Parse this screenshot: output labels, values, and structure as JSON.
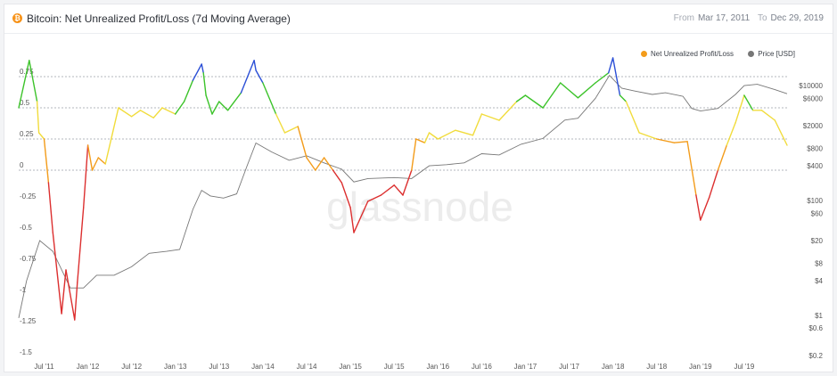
{
  "header": {
    "title": "Bitcoin: Net Unrealized Profit/Loss (7d Moving Average)",
    "from_label": "From",
    "from_value": "Mar 17, 2011",
    "to_label": "To",
    "to_value": "Dec 29, 2019"
  },
  "watermark": "glassnode",
  "colors": {
    "red": "#dc2f2f",
    "orange": "#f39c1b",
    "yellow": "#f1dc3c",
    "green": "#3cc32a",
    "blue": "#2b4fd6",
    "price": "#777777"
  },
  "chart_data": {
    "type": "line",
    "x_tick_labels": [
      "Jul '11",
      "Jan '12",
      "Jul '12",
      "Jan '13",
      "Jul '13",
      "Jan '14",
      "Jul '14",
      "Jan '15",
      "Jul '15",
      "Jan '16",
      "Jul '16",
      "Jan '17",
      "Jul '17",
      "Jan '18",
      "Jul '18",
      "Jan '19",
      "Jul '19"
    ],
    "left_axis": {
      "ylim": [
        -1.5,
        0.95
      ],
      "tick_labels": [
        "0.75",
        "0.5",
        "0.25",
        "0",
        "-0.25",
        "-0.5",
        "-0.75",
        "-1",
        "-1.25",
        "-1.5"
      ]
    },
    "right_axis": {
      "scale": "log",
      "tick_labels": [
        "$10000",
        "$6000",
        "$2000",
        "$800",
        "$400",
        "$100",
        "$60",
        "$20",
        "$8",
        "$4",
        "$1",
        "$0.6",
        "$0.2"
      ]
    },
    "legend": [
      {
        "name": "Net Unrealized Profit/Loss",
        "color": "#f39c1b"
      },
      {
        "name": "Price [USD]",
        "color": "#777777"
      }
    ],
    "series": [
      {
        "name": "Net Unrealized Profit/Loss",
        "x": [
          2011.21,
          2011.33,
          2011.42,
          2011.44,
          2011.5,
          2011.55,
          2011.6,
          2011.7,
          2011.75,
          2011.85,
          2011.88,
          2011.95,
          2012.0,
          2012.05,
          2012.12,
          2012.2,
          2012.35,
          2012.5,
          2012.6,
          2012.75,
          2012.85,
          2013.0,
          2013.1,
          2013.2,
          2013.3,
          2013.32,
          2013.35,
          2013.42,
          2013.5,
          2013.6,
          2013.75,
          2013.9,
          2013.92,
          2014.0,
          2014.15,
          2014.25,
          2014.4,
          2014.5,
          2014.6,
          2014.7,
          2014.8,
          2014.9,
          2015.0,
          2015.04,
          2015.2,
          2015.35,
          2015.5,
          2015.6,
          2015.7,
          2015.75,
          2015.85,
          2015.9,
          2016.0,
          2016.2,
          2016.4,
          2016.5,
          2016.7,
          2016.9,
          2017.0,
          2017.2,
          2017.4,
          2017.6,
          2017.8,
          2017.95,
          2018.0,
          2018.08,
          2018.15,
          2018.3,
          2018.5,
          2018.7,
          2018.85,
          2018.95,
          2019.0,
          2019.1,
          2019.2,
          2019.3,
          2019.4,
          2019.5,
          2019.6,
          2019.7,
          2019.85,
          2019.99
        ],
        "values": [
          0.5,
          0.88,
          0.55,
          0.3,
          0.25,
          -0.1,
          -0.5,
          -1.15,
          -0.8,
          -1.2,
          -0.9,
          -0.3,
          0.2,
          0.0,
          0.1,
          0.05,
          0.5,
          0.43,
          0.48,
          0.42,
          0.5,
          0.45,
          0.55,
          0.72,
          0.85,
          0.78,
          0.6,
          0.45,
          0.55,
          0.48,
          0.62,
          0.88,
          0.8,
          0.7,
          0.45,
          0.3,
          0.35,
          0.1,
          0.0,
          0.1,
          0.0,
          -0.1,
          -0.3,
          -0.5,
          -0.25,
          -0.2,
          -0.12,
          -0.2,
          0.0,
          0.25,
          0.22,
          0.3,
          0.25,
          0.32,
          0.28,
          0.45,
          0.4,
          0.55,
          0.6,
          0.5,
          0.7,
          0.58,
          0.7,
          0.78,
          0.9,
          0.6,
          0.55,
          0.3,
          0.25,
          0.22,
          0.23,
          -0.2,
          -0.4,
          -0.22,
          0.0,
          0.2,
          0.38,
          0.6,
          0.48,
          0.48,
          0.4,
          0.2
        ]
      },
      {
        "name": "Price [USD]",
        "x": [
          2011.21,
          2011.3,
          2011.45,
          2011.6,
          2011.8,
          2011.95,
          2012.1,
          2012.3,
          2012.5,
          2012.7,
          2012.9,
          2013.05,
          2013.2,
          2013.3,
          2013.4,
          2013.55,
          2013.7,
          2013.82,
          2013.92,
          2014.1,
          2014.3,
          2014.5,
          2014.7,
          2014.9,
          2015.04,
          2015.2,
          2015.5,
          2015.7,
          2015.9,
          2016.1,
          2016.3,
          2016.5,
          2016.7,
          2016.95,
          2017.2,
          2017.45,
          2017.6,
          2017.8,
          2017.96,
          2018.1,
          2018.25,
          2018.45,
          2018.6,
          2018.8,
          2018.9,
          2019.0,
          2019.2,
          2019.4,
          2019.5,
          2019.65,
          2019.85,
          2019.99
        ],
        "values": [
          0.9,
          4,
          20,
          13,
          3,
          3,
          5,
          5,
          7,
          12,
          13,
          14,
          70,
          150,
          120,
          110,
          130,
          400,
          1000,
          700,
          500,
          600,
          450,
          350,
          210,
          240,
          250,
          240,
          400,
          420,
          450,
          650,
          620,
          950,
          1200,
          2500,
          2700,
          6000,
          15000,
          9000,
          8000,
          7000,
          7500,
          6500,
          4000,
          3600,
          4000,
          7000,
          10000,
          10500,
          8500,
          7200
        ]
      }
    ]
  }
}
